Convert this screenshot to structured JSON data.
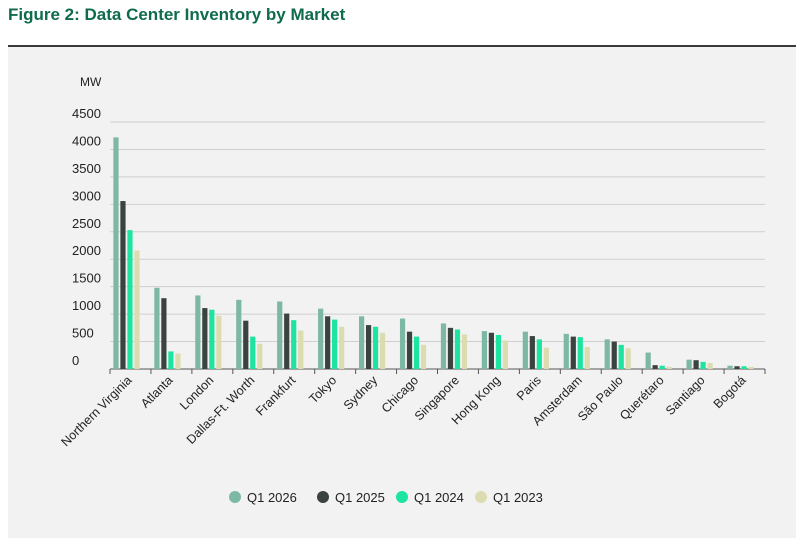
{
  "figure_title": "Figure 2: Data Center Inventory by Market",
  "colors": {
    "title": "#0f6b4a",
    "Q1 2026": "#7db8a5",
    "Q1 2025": "#3b4341",
    "Q1 2024": "#1de4a0",
    "Q1 2023": "#dcdcb0"
  },
  "chart_data": {
    "type": "bar",
    "title": "Figure 2: Data Center Inventory by Market",
    "ylabel": "MW",
    "xlabel": "",
    "ylim": [
      0,
      4500
    ],
    "yticks": [
      0,
      500,
      1000,
      1500,
      2000,
      2500,
      3000,
      3500,
      4000,
      4500
    ],
    "grid": true,
    "legend_position": "bottom",
    "categories": [
      "Northern Virginia",
      "Atlanta",
      "London",
      "Dallas-Ft. Worth",
      "Frankfurt",
      "Tokyo",
      "Sydney",
      "Chicago",
      "Singapore",
      "Hong Kong",
      "Paris",
      "Amsterdam",
      "São Paulo",
      "Querétaro",
      "Santiago",
      "Bogotá"
    ],
    "series": [
      {
        "name": "Q1 2026",
        "values": [
          4220,
          1480,
          1340,
          1260,
          1230,
          1100,
          960,
          920,
          830,
          690,
          680,
          640,
          540,
          300,
          170,
          60
        ]
      },
      {
        "name": "Q1 2025",
        "values": [
          3060,
          1290,
          1110,
          880,
          1010,
          960,
          800,
          680,
          750,
          660,
          600,
          590,
          500,
          70,
          160,
          50
        ]
      },
      {
        "name": "Q1 2024",
        "values": [
          2530,
          320,
          1080,
          590,
          890,
          900,
          770,
          590,
          720,
          620,
          540,
          580,
          440,
          60,
          130,
          50
        ]
      },
      {
        "name": "Q1 2023",
        "values": [
          2160,
          280,
          970,
          460,
          700,
          770,
          660,
          440,
          630,
          520,
          390,
          400,
          380,
          40,
          110,
          40
        ]
      }
    ]
  }
}
